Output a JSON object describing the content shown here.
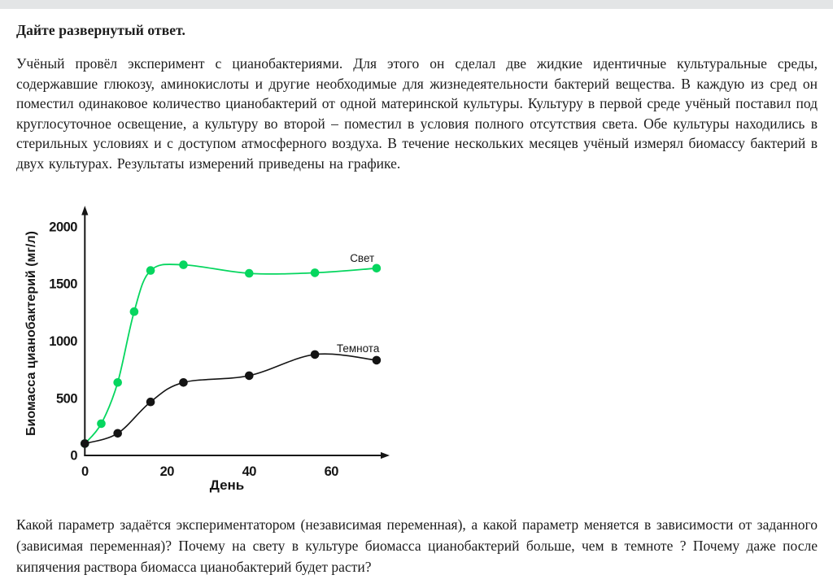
{
  "page": {
    "heading": "Дайте развернутый ответ.",
    "intro_paragraph": "Учёный провёл эксперимент с цианобактериями. Для этого он сделал две жидкие идентичные культуральные среды, содержавшие глюкозу, аминокислоты и другие необходимые для жизнедеятельности бактерий вещества. В каждую из сред он поместил одинаковое количество цианобактерий от одной материнской культуры. Культуру в первой среде учёный поставил под круглосуточное освещение, а культуру во второй – поместил в условия полного отсутствия света. Обе культуры находились в стерильных условиях и с доступом атмосферного воздуха. В течение нескольких месяцев учёный измерял биомассу бактерий в двух культурах. Результаты измерений приведены на графике.",
    "question_paragraph": "Какой параметр задаётся экспериментатором (независимая переменная), а какой параметр меняется в зависимости от заданного (зависимая переменная)? Почему на свету в культуре биомасса цианобактерий больше, чем в темноте ? Почему даже после кипячения раствора биомасса цианобактерий будет расти?"
  },
  "colors": {
    "top_bar": "#e3e5e6",
    "ink": "#161616",
    "light_series_green": "#06d65f",
    "dark_series_black": "#141414"
  },
  "chart_data": {
    "type": "line",
    "title": "",
    "xlabel": "День",
    "ylabel": "Биомасса цианобактерий (мг/л)",
    "xlim": [
      0,
      74
    ],
    "ylim": [
      0,
      2000
    ],
    "x_ticks": [
      0,
      20,
      40,
      60
    ],
    "y_ticks": [
      0,
      500,
      1000,
      1500,
      2000
    ],
    "grid": false,
    "legend_position": "inline-labels-near-curves",
    "series": [
      {
        "name": "Свет",
        "color": "#06d65f",
        "x": [
          0,
          4,
          8,
          12,
          16,
          24,
          40,
          56,
          71
        ],
        "values": [
          100,
          275,
          635,
          1255,
          1615,
          1665,
          1590,
          1595,
          1635
        ],
        "label_anchor": {
          "x": 67.5,
          "y": 1690
        }
      },
      {
        "name": "Темнота",
        "color": "#141414",
        "x": [
          0,
          8,
          16,
          24,
          40,
          56,
          71
        ],
        "values": [
          100,
          190,
          465,
          635,
          695,
          880,
          830
        ],
        "label_anchor": {
          "x": 66.5,
          "y": 900
        }
      }
    ]
  }
}
